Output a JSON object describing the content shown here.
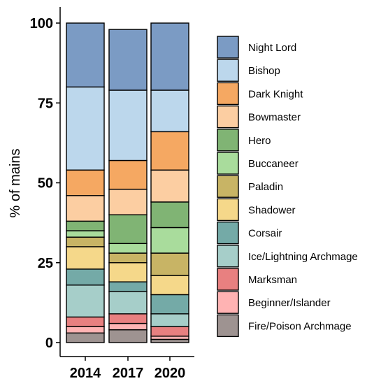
{
  "chart_data": {
    "type": "bar",
    "stacked": true,
    "categories": [
      "2014",
      "2017",
      "2020"
    ],
    "ylabel": "% of mains",
    "xlabel": "",
    "ylim": [
      0,
      100
    ],
    "yticks": [
      0,
      25,
      50,
      75,
      100
    ],
    "grid": false,
    "legend_position": "right",
    "series": [
      {
        "name": "Fire/Poison Archmage",
        "color": "#9e9391",
        "values": [
          3,
          4,
          1
        ]
      },
      {
        "name": "Beginner/Islander",
        "color": "#ffb3b3",
        "values": [
          2,
          2,
          1
        ]
      },
      {
        "name": "Marksman",
        "color": "#e88080",
        "values": [
          3,
          3,
          3
        ]
      },
      {
        "name": "Ice/Lightning Archmage",
        "color": "#a6cec9",
        "values": [
          10,
          7,
          4
        ]
      },
      {
        "name": "Corsair",
        "color": "#74aaa7",
        "values": [
          5,
          3,
          6
        ]
      },
      {
        "name": "Shadower",
        "color": "#f5d88a",
        "values": [
          7,
          6,
          6
        ]
      },
      {
        "name": "Paladin",
        "color": "#c8b465",
        "values": [
          3,
          3,
          7
        ]
      },
      {
        "name": "Buccaneer",
        "color": "#a9dc9c",
        "values": [
          2,
          3,
          8
        ]
      },
      {
        "name": "Hero",
        "color": "#80b474",
        "values": [
          3,
          9,
          8
        ]
      },
      {
        "name": "Bowmaster",
        "color": "#fccea2",
        "values": [
          8,
          8,
          10
        ]
      },
      {
        "name": "Dark Knight",
        "color": "#f5a862",
        "values": [
          8,
          9,
          12
        ]
      },
      {
        "name": "Bishop",
        "color": "#bcd7ec",
        "values": [
          26,
          22,
          13
        ]
      },
      {
        "name": "Night Lord",
        "color": "#7b9bc4",
        "values": [
          20,
          19,
          21
        ]
      }
    ],
    "legend_order": [
      "Night Lord",
      "Bishop",
      "Dark Knight",
      "Bowmaster",
      "Hero",
      "Buccaneer",
      "Paladin",
      "Shadower",
      "Corsair",
      "Ice/Lightning Archmage",
      "Marksman",
      "Beginner/Islander",
      "Fire/Poison Archmage"
    ]
  }
}
